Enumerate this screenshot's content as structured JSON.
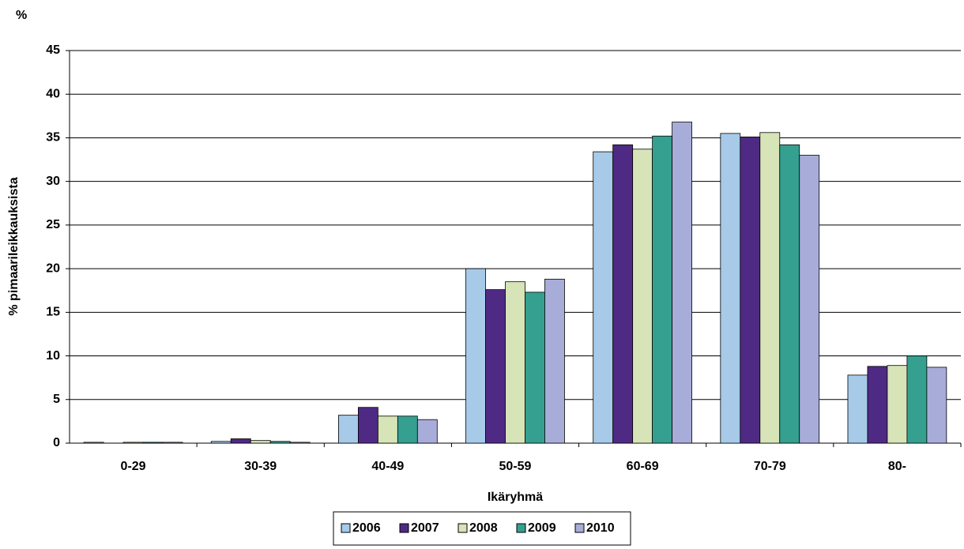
{
  "chart_data": {
    "type": "bar",
    "title": "%",
    "y_label": "% pimaarileikkauksista",
    "x_label": "Ikäryhmä",
    "categories": [
      "0-29",
      "30-39",
      "40-49",
      "50-59",
      "60-69",
      "70-79",
      "80-"
    ],
    "series": [
      {
        "name": "2006",
        "color": "#a6cae8",
        "values": [
          0.1,
          0.2,
          3.2,
          20.0,
          33.4,
          35.5,
          7.8
        ]
      },
      {
        "name": "2007",
        "color": "#4f2a84",
        "values": [
          0,
          0.5,
          4.1,
          17.6,
          34.2,
          35.1,
          8.8
        ]
      },
      {
        "name": "2008",
        "color": "#d6e4b8",
        "values": [
          0.1,
          0.3,
          3.1,
          18.5,
          33.7,
          35.6,
          8.9
        ]
      },
      {
        "name": "2009",
        "color": "#36a090",
        "values": [
          0.1,
          0.2,
          3.1,
          17.3,
          35.2,
          34.2,
          10.0
        ]
      },
      {
        "name": "2010",
        "color": "#a8acd8",
        "values": [
          0.1,
          0.1,
          2.7,
          18.8,
          36.8,
          33.0,
          8.7
        ]
      }
    ],
    "ylim": [
      0,
      45
    ],
    "yticks": [
      0,
      5,
      10,
      15,
      20,
      25,
      30,
      35,
      40,
      45
    ],
    "grid": true
  }
}
